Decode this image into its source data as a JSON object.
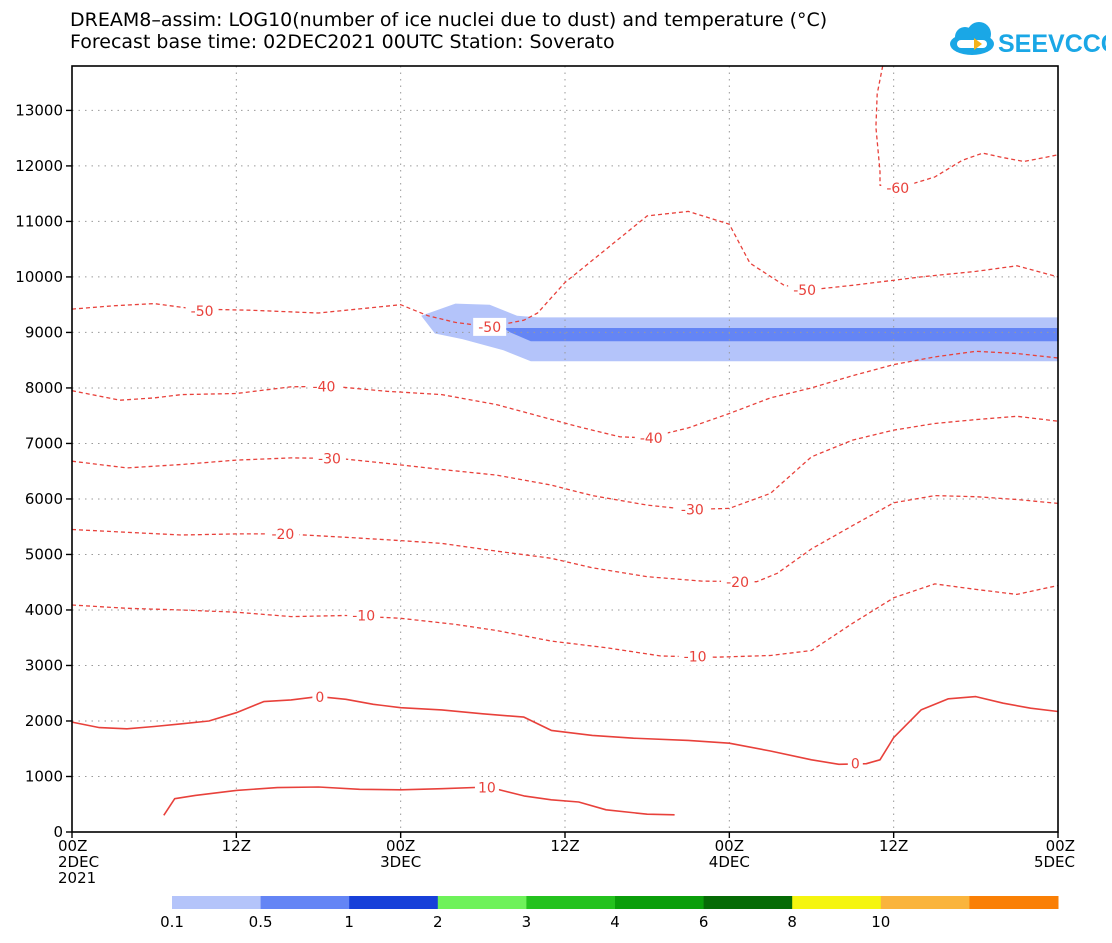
{
  "title_line1": "DREAM8–assim: LOG10(number of ice nuclei due to dust) and temperature (°C)",
  "title_line2": "Forecast base time: 02DEC2021 00UTC   Station: Soverato",
  "logo_text": "SEEVCCC",
  "colors": {
    "contour": "#e8413b",
    "frame": "#000000",
    "grid": "#9a9a9a"
  },
  "chart_data": {
    "type": "area",
    "title": "DREAM8–assim: LOG10(number of ice nuclei due to dust) and temperature (°C)",
    "xlabel": "",
    "ylabel": "",
    "xlim_hours": [
      0,
      72
    ],
    "ylim": [
      0,
      13800
    ],
    "grid": true,
    "y_ticks": [
      0,
      1000,
      2000,
      3000,
      4000,
      5000,
      6000,
      7000,
      8000,
      9000,
      10000,
      11000,
      12000,
      13000
    ],
    "x_ticks": [
      {
        "h": 0,
        "l1": "00Z",
        "l2": "2DEC",
        "l3": "2021"
      },
      {
        "h": 12,
        "l1": "12Z",
        "l2": "",
        "l3": ""
      },
      {
        "h": 24,
        "l1": "00Z",
        "l2": "3DEC",
        "l3": ""
      },
      {
        "h": 36,
        "l1": "12Z",
        "l2": "",
        "l3": ""
      },
      {
        "h": 48,
        "l1": "00Z",
        "l2": "4DEC",
        "l3": ""
      },
      {
        "h": 60,
        "l1": "12Z",
        "l2": "",
        "l3": ""
      },
      {
        "h": 72,
        "l1": "00Z",
        "l2": "5DEC",
        "l3": ""
      }
    ],
    "colorbar": {
      "labels": [
        "0.1",
        "0.5",
        "1",
        "2",
        "3",
        "4",
        "6",
        "8",
        "10"
      ],
      "colors": [
        "#b4c4fa",
        "#6485f5",
        "#1740d9",
        "#6ef25a",
        "#24c21e",
        "#0a9e0a",
        "#056b05",
        "#f5f50f",
        "#fab43c",
        "#fa7f05"
      ]
    },
    "shaded": [
      {
        "level": "0.1",
        "color": "#b4c4fa",
        "points": [
          [
            25.5,
            9300
          ],
          [
            28,
            9520
          ],
          [
            30.5,
            9500
          ],
          [
            32.5,
            9300
          ],
          [
            34,
            9270
          ],
          [
            72,
            9270
          ],
          [
            72,
            8480
          ],
          [
            33.5,
            8480
          ],
          [
            31.5,
            8680
          ],
          [
            28.5,
            8880
          ],
          [
            26.5,
            8980
          ]
        ]
      },
      {
        "level": "0.5",
        "color": "#6485f5",
        "points": [
          [
            31.5,
            9080
          ],
          [
            34,
            9080
          ],
          [
            72,
            9080
          ],
          [
            72,
            8840
          ],
          [
            33.5,
            8840
          ],
          [
            32,
            9000
          ]
        ]
      }
    ],
    "contours": [
      {
        "value": -60,
        "label": "-60",
        "dashed": true,
        "points": [
          [
            59.2,
            13800
          ],
          [
            58.8,
            13300
          ],
          [
            58.7,
            12700
          ],
          [
            59,
            11900
          ],
          [
            59,
            11650
          ],
          [
            61,
            11650
          ],
          [
            63,
            11800
          ],
          [
            65,
            12100
          ],
          [
            66.5,
            12230
          ],
          [
            68,
            12150
          ],
          [
            69.5,
            12080
          ],
          [
            71,
            12150
          ],
          [
            72,
            12200
          ]
        ],
        "label_at": [
          60.3,
          11600
        ]
      },
      {
        "value": -50,
        "label": "-50",
        "dashed": true,
        "points": [
          [
            0,
            9420
          ],
          [
            3,
            9480
          ],
          [
            6,
            9520
          ],
          [
            9,
            9420
          ],
          [
            13,
            9400
          ],
          [
            18,
            9350
          ],
          [
            22,
            9450
          ],
          [
            24,
            9500
          ],
          [
            26,
            9300
          ],
          [
            28,
            9180
          ],
          [
            30.5,
            9100
          ],
          [
            33,
            9220
          ],
          [
            34,
            9350
          ],
          [
            36,
            9900
          ],
          [
            39,
            10500
          ],
          [
            42,
            11100
          ],
          [
            45,
            11180
          ],
          [
            48,
            10950
          ],
          [
            49.5,
            10250
          ],
          [
            52,
            9850
          ],
          [
            54,
            9770
          ],
          [
            57,
            9850
          ],
          [
            62,
            10000
          ],
          [
            66,
            10100
          ],
          [
            69,
            10200
          ],
          [
            72,
            10000
          ]
        ],
        "label_at": [
          30.5,
          9100
        ],
        "label_at2": [
          53.5,
          9760
        ],
        "label_at3": [
          9.5,
          9390
        ]
      },
      {
        "value": -40,
        "label": "-40",
        "dashed": true,
        "points": [
          [
            0,
            7950
          ],
          [
            3.5,
            7780
          ],
          [
            6,
            7820
          ],
          [
            8,
            7880
          ],
          [
            12,
            7900
          ],
          [
            16,
            8020
          ],
          [
            19,
            8030
          ],
          [
            23,
            7940
          ],
          [
            27,
            7880
          ],
          [
            31,
            7700
          ],
          [
            34,
            7500
          ],
          [
            37,
            7300
          ],
          [
            40,
            7120
          ],
          [
            42,
            7100
          ],
          [
            45,
            7280
          ],
          [
            48,
            7540
          ],
          [
            51,
            7820
          ],
          [
            54,
            8000
          ],
          [
            57,
            8220
          ],
          [
            60,
            8420
          ],
          [
            63,
            8560
          ],
          [
            66,
            8660
          ],
          [
            69,
            8620
          ],
          [
            72,
            8540
          ]
        ],
        "label_at": [
          18.4,
          8030
        ],
        "label_at2": [
          42.3,
          7100
        ]
      },
      {
        "value": -30,
        "label": "-30",
        "dashed": true,
        "points": [
          [
            0,
            6680
          ],
          [
            4,
            6560
          ],
          [
            8,
            6620
          ],
          [
            12,
            6700
          ],
          [
            16,
            6740
          ],
          [
            19.5,
            6730
          ],
          [
            23,
            6640
          ],
          [
            27,
            6530
          ],
          [
            31,
            6430
          ],
          [
            35,
            6250
          ],
          [
            38,
            6060
          ],
          [
            42,
            5890
          ],
          [
            45,
            5810
          ],
          [
            48,
            5830
          ],
          [
            51,
            6100
          ],
          [
            54,
            6760
          ],
          [
            57,
            7060
          ],
          [
            60,
            7240
          ],
          [
            63,
            7360
          ],
          [
            66,
            7430
          ],
          [
            69,
            7490
          ],
          [
            72,
            7400
          ]
        ],
        "label_at": [
          18.8,
          6730
        ],
        "label_at2": [
          45.3,
          5810
        ]
      },
      {
        "value": -20,
        "label": "-20",
        "dashed": true,
        "points": [
          [
            0,
            5450
          ],
          [
            4,
            5400
          ],
          [
            8,
            5350
          ],
          [
            12,
            5370
          ],
          [
            15.5,
            5370
          ],
          [
            20,
            5310
          ],
          [
            24,
            5250
          ],
          [
            27,
            5200
          ],
          [
            31,
            5060
          ],
          [
            35,
            4930
          ],
          [
            38,
            4760
          ],
          [
            42,
            4600
          ],
          [
            46,
            4520
          ],
          [
            50,
            4510
          ],
          [
            51.5,
            4660
          ],
          [
            54,
            5100
          ],
          [
            57,
            5520
          ],
          [
            60,
            5930
          ],
          [
            63,
            6060
          ],
          [
            66,
            6040
          ],
          [
            69,
            5990
          ],
          [
            72,
            5920
          ]
        ],
        "label_at": [
          15.4,
          5370
        ],
        "label_at2": [
          48.6,
          4500
        ]
      },
      {
        "value": -10,
        "label": "-10",
        "dashed": true,
        "points": [
          [
            0,
            4090
          ],
          [
            4,
            4030
          ],
          [
            8,
            4000
          ],
          [
            12,
            3960
          ],
          [
            16,
            3880
          ],
          [
            20,
            3900
          ],
          [
            24,
            3850
          ],
          [
            28,
            3740
          ],
          [
            31,
            3630
          ],
          [
            35,
            3440
          ],
          [
            39,
            3320
          ],
          [
            43,
            3170
          ],
          [
            47,
            3150
          ],
          [
            51,
            3180
          ],
          [
            54,
            3270
          ],
          [
            57,
            3760
          ],
          [
            60,
            4220
          ],
          [
            63,
            4470
          ],
          [
            66,
            4370
          ],
          [
            69,
            4280
          ],
          [
            72,
            4440
          ]
        ],
        "label_at": [
          21.3,
          3900
        ],
        "label_at2": [
          45.5,
          3160
        ]
      },
      {
        "value": 0,
        "label": "0",
        "dashed": false,
        "points": [
          [
            0,
            1980
          ],
          [
            2,
            1880
          ],
          [
            4,
            1860
          ],
          [
            6,
            1900
          ],
          [
            8,
            1950
          ],
          [
            10,
            2000
          ],
          [
            12,
            2150
          ],
          [
            14,
            2350
          ],
          [
            16,
            2380
          ],
          [
            18,
            2440
          ],
          [
            20,
            2390
          ],
          [
            22,
            2300
          ],
          [
            24,
            2240
          ],
          [
            27,
            2200
          ],
          [
            30,
            2130
          ],
          [
            33,
            2070
          ],
          [
            35,
            1830
          ],
          [
            38,
            1740
          ],
          [
            41,
            1690
          ],
          [
            45,
            1650
          ],
          [
            48,
            1600
          ],
          [
            51,
            1460
          ],
          [
            54,
            1300
          ],
          [
            56,
            1220
          ],
          [
            58,
            1230
          ],
          [
            59,
            1300
          ],
          [
            60,
            1700
          ],
          [
            62,
            2200
          ],
          [
            64,
            2400
          ],
          [
            66,
            2440
          ],
          [
            68,
            2320
          ],
          [
            70,
            2230
          ],
          [
            72,
            2170
          ]
        ],
        "label_at": [
          18.1,
          2430
        ],
        "label_at2": [
          57.2,
          1230
        ]
      },
      {
        "value": 10,
        "label": "10",
        "dashed": false,
        "points": [
          [
            6.7,
            300
          ],
          [
            7.5,
            600
          ],
          [
            9,
            660
          ],
          [
            12,
            750
          ],
          [
            15,
            800
          ],
          [
            18,
            810
          ],
          [
            21,
            770
          ],
          [
            24,
            760
          ],
          [
            27,
            780
          ],
          [
            30.4,
            810
          ],
          [
            33,
            650
          ],
          [
            35,
            580
          ],
          [
            37,
            540
          ],
          [
            39,
            400
          ],
          [
            42,
            320
          ],
          [
            44,
            310
          ]
        ],
        "label_at": [
          30.3,
          800
        ]
      }
    ]
  }
}
